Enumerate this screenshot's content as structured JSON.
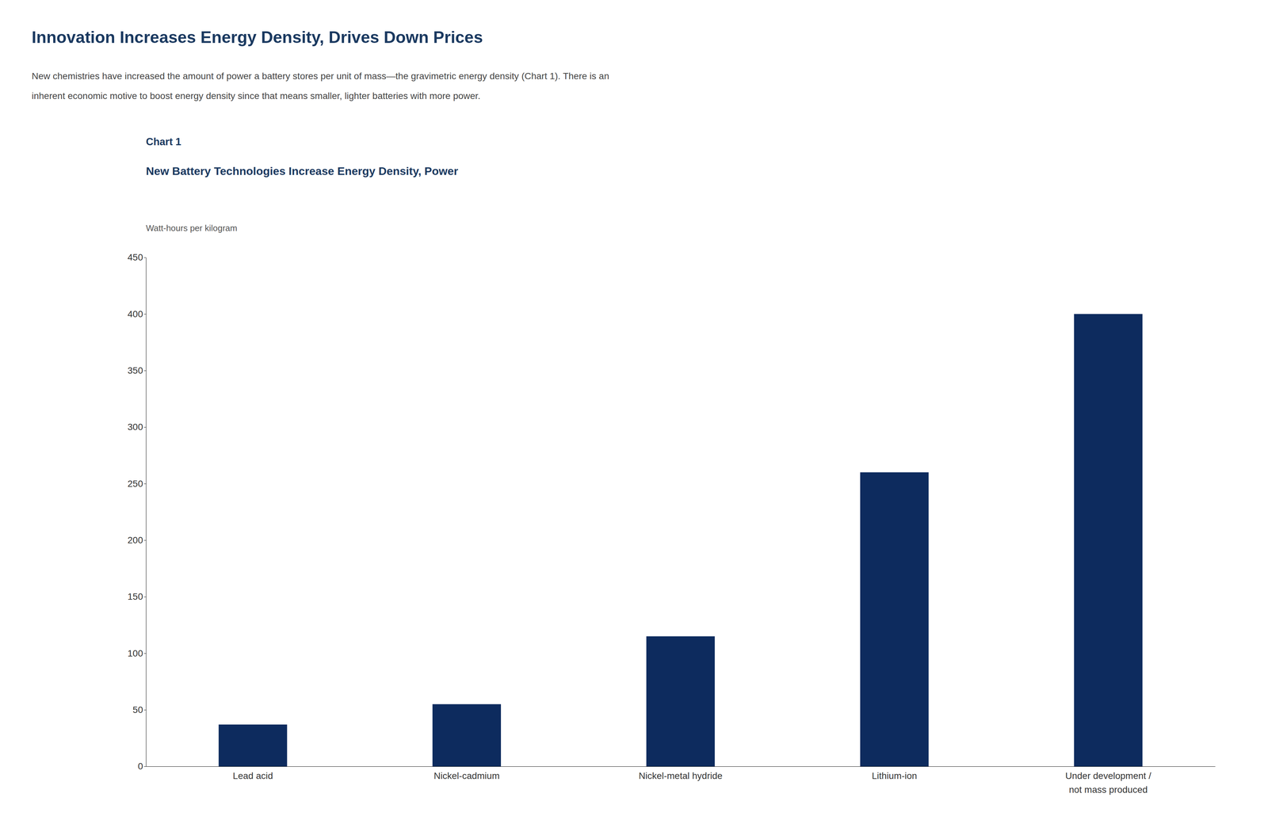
{
  "chart_data": {
    "type": "bar",
    "title": "Innovation Increases Energy Density, Drives Down Prices",
    "annotations": [
      "New chemistries have increased the amount of power a battery stores per unit of mass—the gravimetric energy density (Chart 1). There is an",
      "inherent economic motive to boost energy density since that means smaller, lighter batteries with more power.",
      "Chart 1"
    ],
    "subtitle": "New Battery Technologies Increase Energy Density, Power",
    "ylabel": "Watt-hours per kilogram",
    "categories": [
      "Lead acid",
      "Nickel-cadmium",
      "Nickel-metal hydride",
      "Lithium-ion",
      "Under development /\nnot mass produced"
    ],
    "values": [
      37,
      55,
      115,
      260,
      400
    ],
    "color": "#0d2b5e",
    "ylim": [
      0,
      450
    ],
    "yticks": [
      0,
      50,
      100,
      150,
      200,
      250,
      300,
      350,
      400,
      450
    ],
    "grid": false
  }
}
